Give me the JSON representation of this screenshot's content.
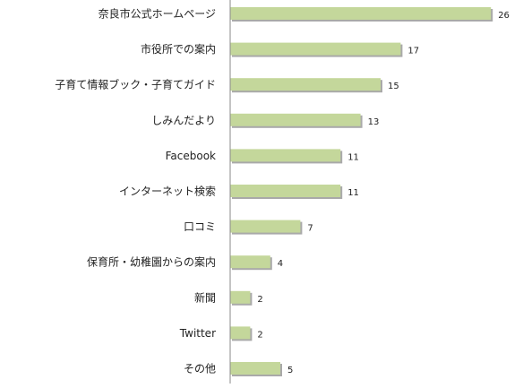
{
  "chart_data": {
    "type": "bar",
    "orientation": "horizontal",
    "categories": [
      "奈良市公式ホームページ",
      "市役所での案内",
      "子育て情報ブック・子育てガイド",
      "しみんだより",
      "Facebook",
      "インターネット検索",
      "口コミ",
      "保育所・幼稚園からの案内",
      "新聞",
      "Twitter",
      "その他"
    ],
    "values": [
      26,
      17,
      15,
      13,
      11,
      11,
      7,
      4,
      2,
      2,
      5
    ],
    "xlim": [
      0,
      26
    ],
    "grid": false,
    "legend": "none",
    "data_labels": true,
    "colors": {
      "bar_fill": "#c4d79b",
      "bar_shadow": "#a9a9a9",
      "axis": "#888888",
      "text": "#222222"
    }
  }
}
